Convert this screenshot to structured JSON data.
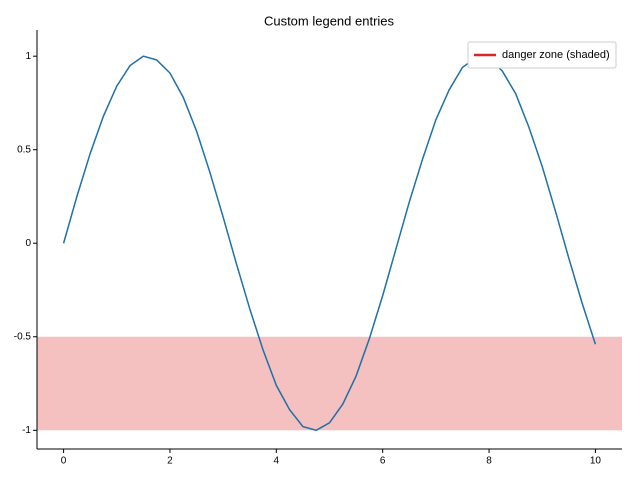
{
  "chart_data": {
    "type": "line",
    "title": "Custom legend entries",
    "x": [
      0,
      0.25,
      0.5,
      0.75,
      1,
      1.25,
      1.5,
      1.75,
      2,
      2.25,
      2.5,
      2.75,
      3,
      3.25,
      3.5,
      3.75,
      4,
      4.25,
      4.5,
      4.75,
      5,
      5.25,
      5.5,
      5.75,
      6,
      6.25,
      6.5,
      6.75,
      7,
      7.25,
      7.5,
      7.75,
      8,
      8.25,
      8.5,
      8.75,
      9,
      9.25,
      9.5,
      9.75,
      10
    ],
    "series": [
      {
        "color": "#1f6fa8",
        "values": [
          0,
          0.25,
          0.48,
          0.68,
          0.84,
          0.95,
          1.0,
          0.98,
          0.91,
          0.78,
          0.6,
          0.38,
          0.14,
          -0.11,
          -0.35,
          -0.57,
          -0.76,
          -0.89,
          -0.98,
          -1.0,
          -0.96,
          -0.86,
          -0.71,
          -0.51,
          -0.28,
          -0.03,
          0.22,
          0.45,
          0.66,
          0.82,
          0.94,
          0.99,
          0.99,
          0.92,
          0.8,
          0.62,
          0.41,
          0.17,
          -0.08,
          -0.32,
          -0.54
        ]
      }
    ],
    "shaded_band": {
      "ymin": -1,
      "ymax": -0.5,
      "color": "#f4c0c0"
    },
    "legend": [
      {
        "label": "danger zone (shaded)",
        "color": "#d62728"
      }
    ],
    "legend_loc": "upper right",
    "xlim": [
      -0.5,
      10.5
    ],
    "ylim": [
      -1.1,
      1.14
    ],
    "xticks": [
      0,
      2,
      4,
      6,
      8,
      10
    ],
    "yticks": [
      -1,
      -0.5,
      0,
      0.5,
      1
    ]
  }
}
